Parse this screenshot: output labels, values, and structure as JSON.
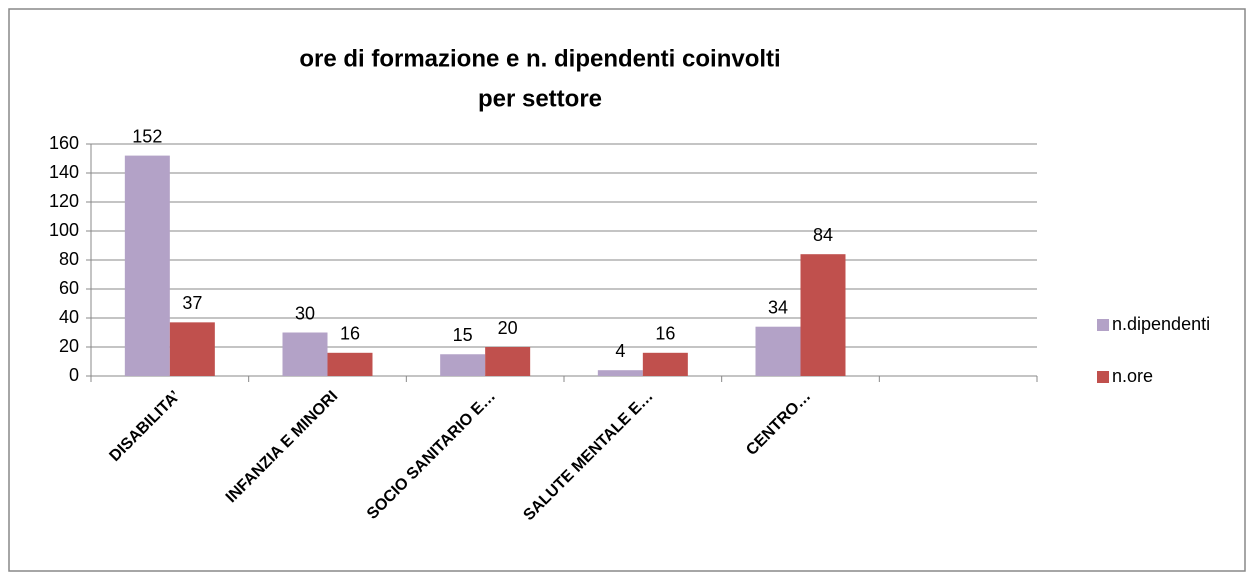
{
  "chart_data": {
    "type": "bar",
    "title": [
      "ore di formazione e n. dipendenti coinvolti",
      "per settore"
    ],
    "categories": [
      "DISABILITA’",
      "INFANZIA E MINORI",
      "SOCIO SANITARIO E…",
      "SALUTE MENTALE E…",
      "CENTRO…",
      null
    ],
    "series": [
      {
        "name": "n.dipendenti",
        "color": "#b3a2c7",
        "values": [
          152,
          30,
          15,
          4,
          34,
          null
        ]
      },
      {
        "name": "n.ore",
        "color": "#c0504d",
        "values": [
          37,
          16,
          20,
          16,
          84,
          null
        ]
      }
    ],
    "ylim": [
      0,
      160
    ],
    "yticks": [
      0,
      20,
      40,
      60,
      80,
      100,
      120,
      140,
      160
    ],
    "grid": true,
    "legend": "right"
  }
}
